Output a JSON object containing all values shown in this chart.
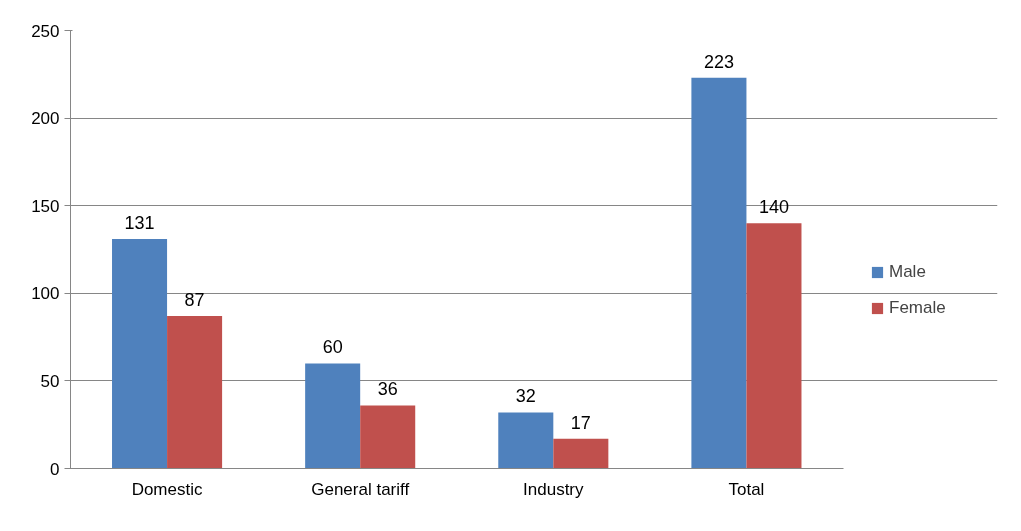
{
  "chart_data": {
    "type": "bar",
    "categories": [
      "Domestic",
      "General tariff",
      "Industry",
      "Total"
    ],
    "series": [
      {
        "name": "Male",
        "color": "#4f81bd",
        "values": [
          131,
          60,
          32,
          223
        ]
      },
      {
        "name": "Female",
        "color": "#c0504d",
        "values": [
          87,
          36,
          17,
          140
        ]
      }
    ],
    "ylim": [
      0,
      250
    ],
    "yticks": [
      0,
      50,
      100,
      150,
      200,
      250
    ],
    "grid": "y",
    "legend": "right",
    "data_labels": true
  }
}
